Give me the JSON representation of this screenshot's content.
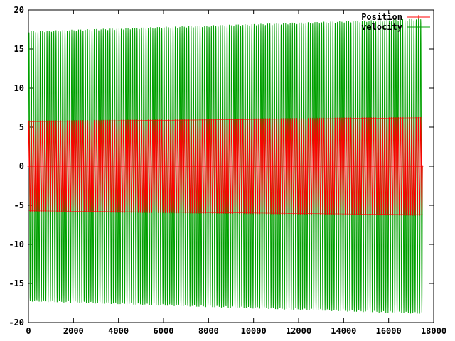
{
  "chart_data": {
    "type": "line",
    "title": "",
    "xlabel": "",
    "ylabel": "",
    "xlim": [
      0,
      18000
    ],
    "ylim": [
      -20,
      20
    ],
    "x_ticks": [
      0,
      2000,
      4000,
      6000,
      8000,
      10000,
      12000,
      14000,
      16000,
      18000
    ],
    "y_ticks": [
      -20,
      -15,
      -10,
      -5,
      0,
      5,
      10,
      15,
      20
    ],
    "grid": false,
    "legend_position": "top-right",
    "series": [
      {
        "name": "Position",
        "color": "#ff0000",
        "marker": "plus",
        "x_range": [
          0,
          17500
        ],
        "amplitude_start": 5.7,
        "amplitude_end": 6.2,
        "oscillation_period": 100
      },
      {
        "name": "velocity",
        "color": "#00a000",
        "marker": "none",
        "x_range": [
          0,
          17500
        ],
        "amplitude_start": 17.3,
        "amplitude_end": 18.9,
        "oscillation_period": 100
      }
    ]
  }
}
